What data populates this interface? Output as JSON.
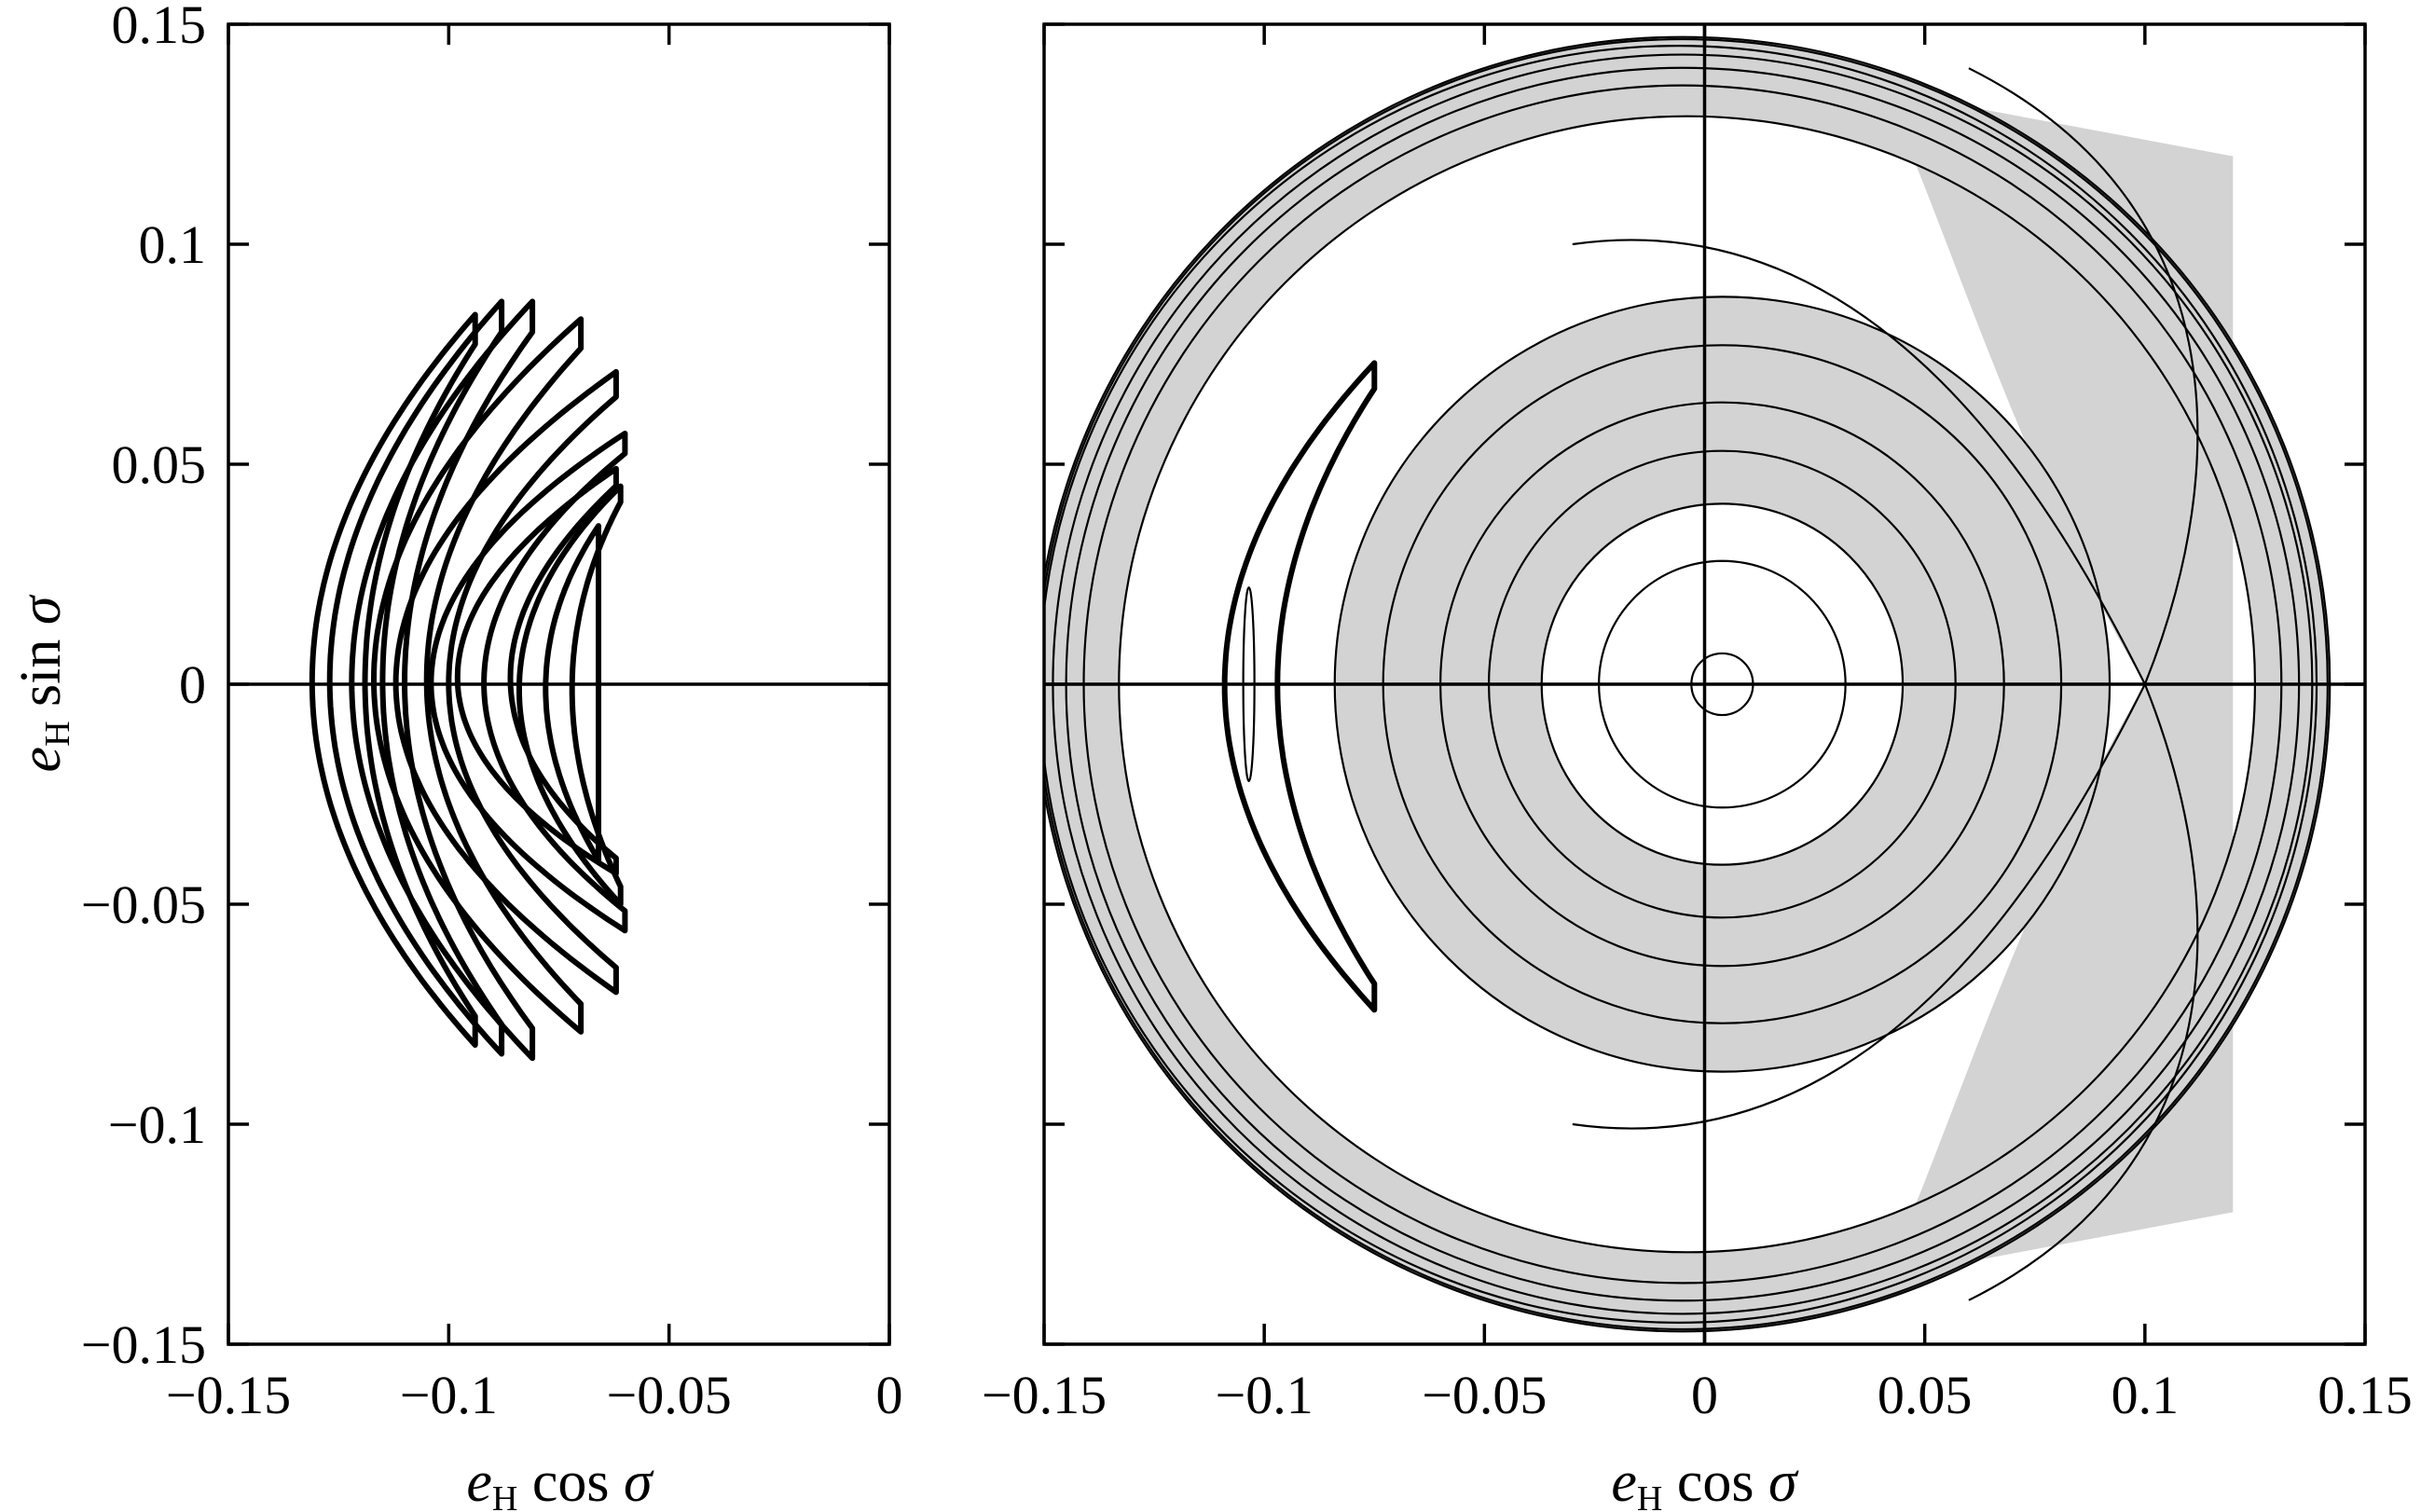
{
  "chart_data": [
    {
      "type": "line",
      "id": "left",
      "xlabel": "e_H cos σ",
      "ylabel": "e_H sin σ",
      "xlim": [
        -0.15,
        0
      ],
      "ylim": [
        -0.15,
        0.15
      ],
      "xticks": [
        -0.15,
        -0.1,
        -0.05,
        0
      ],
      "yticks": [
        0.15,
        0.1,
        0.05,
        0,
        -0.05,
        -0.1,
        -0.15
      ],
      "xtick_labels": [
        "−0.15",
        "−0.1",
        "−0.05",
        "0"
      ],
      "ytick_labels": [
        "0.15",
        "0.1",
        "0.05",
        "0",
        "−0.05",
        "−0.1",
        "−0.15"
      ],
      "zero_line": "horizontal",
      "series": [
        {
          "style": "thick crescent loops",
          "arcs": [
            {
              "x_tip": -0.131,
              "x_end": -0.094,
              "y_top": 0.084,
              "y_bottom": -0.082
            },
            {
              "x_tip": -0.127,
              "x_end": -0.088,
              "y_top": 0.087,
              "y_bottom": -0.084
            },
            {
              "x_tip": -0.122,
              "x_end": -0.081,
              "y_top": 0.087,
              "y_bottom": -0.085
            },
            {
              "x_tip": -0.117,
              "x_end": -0.07,
              "y_top": 0.083,
              "y_bottom": -0.079
            },
            {
              "x_tip": -0.112,
              "x_end": -0.062,
              "y_top": 0.071,
              "y_bottom": -0.07
            },
            {
              "x_tip": -0.104,
              "x_end": -0.06,
              "y_top": 0.057,
              "y_bottom": -0.056
            },
            {
              "x_tip": -0.098,
              "x_end": -0.062,
              "y_top": 0.049,
              "y_bottom": -0.043
            },
            {
              "x_tip": -0.084,
              "x_end": -0.061,
              "y_top": 0.045,
              "y_bottom": -0.05
            },
            {
              "x_tip": -0.078,
              "x_end": -0.066,
              "y_top": 0.036,
              "y_bottom": -0.04
            }
          ]
        }
      ]
    },
    {
      "type": "line",
      "id": "right",
      "xlabel": "e_H cos σ",
      "ylabel": "",
      "xlim": [
        -0.15,
        0.15
      ],
      "ylim": [
        -0.15,
        0.15
      ],
      "xticks": [
        -0.15,
        -0.1,
        -0.05,
        0,
        0.05,
        0.1,
        0.15
      ],
      "xtick_labels": [
        "−0.15",
        "−0.1",
        "−0.05",
        "0",
        "0.05",
        "0.1",
        "0.15"
      ],
      "zero_lines": [
        "horizontal",
        "vertical"
      ],
      "fill_color": "#d3d3d3",
      "series": [
        {
          "style": "level curves (thin)",
          "circles_center": [
            0.004,
            0
          ],
          "circle_radii": [
            0.007,
            0.028,
            0.041,
            0.053,
            0.064,
            0.077
          ],
          "outer_circles": [
            {
              "cx": -0.005,
              "r": 0.136
            },
            {
              "cx": -0.005,
              "r": 0.14
            },
            {
              "cx": -0.005,
              "r": 0.143
            },
            {
              "cx": -0.005,
              "r": 0.147
            },
            {
              "cx": -0.005,
              "r": 0.1465
            },
            {
              "cx": -0.006,
              "r": 0.145
            }
          ],
          "separatrix_point": [
            0.1,
            0
          ],
          "shaded_band_radii": [
            0.088,
            0.129
          ]
        },
        {
          "style": "thick trajectory",
          "arc": {
            "x_tip": -0.109,
            "x_end": -0.075,
            "y_top": 0.073,
            "y_bottom": -0.074
          }
        }
      ]
    }
  ]
}
